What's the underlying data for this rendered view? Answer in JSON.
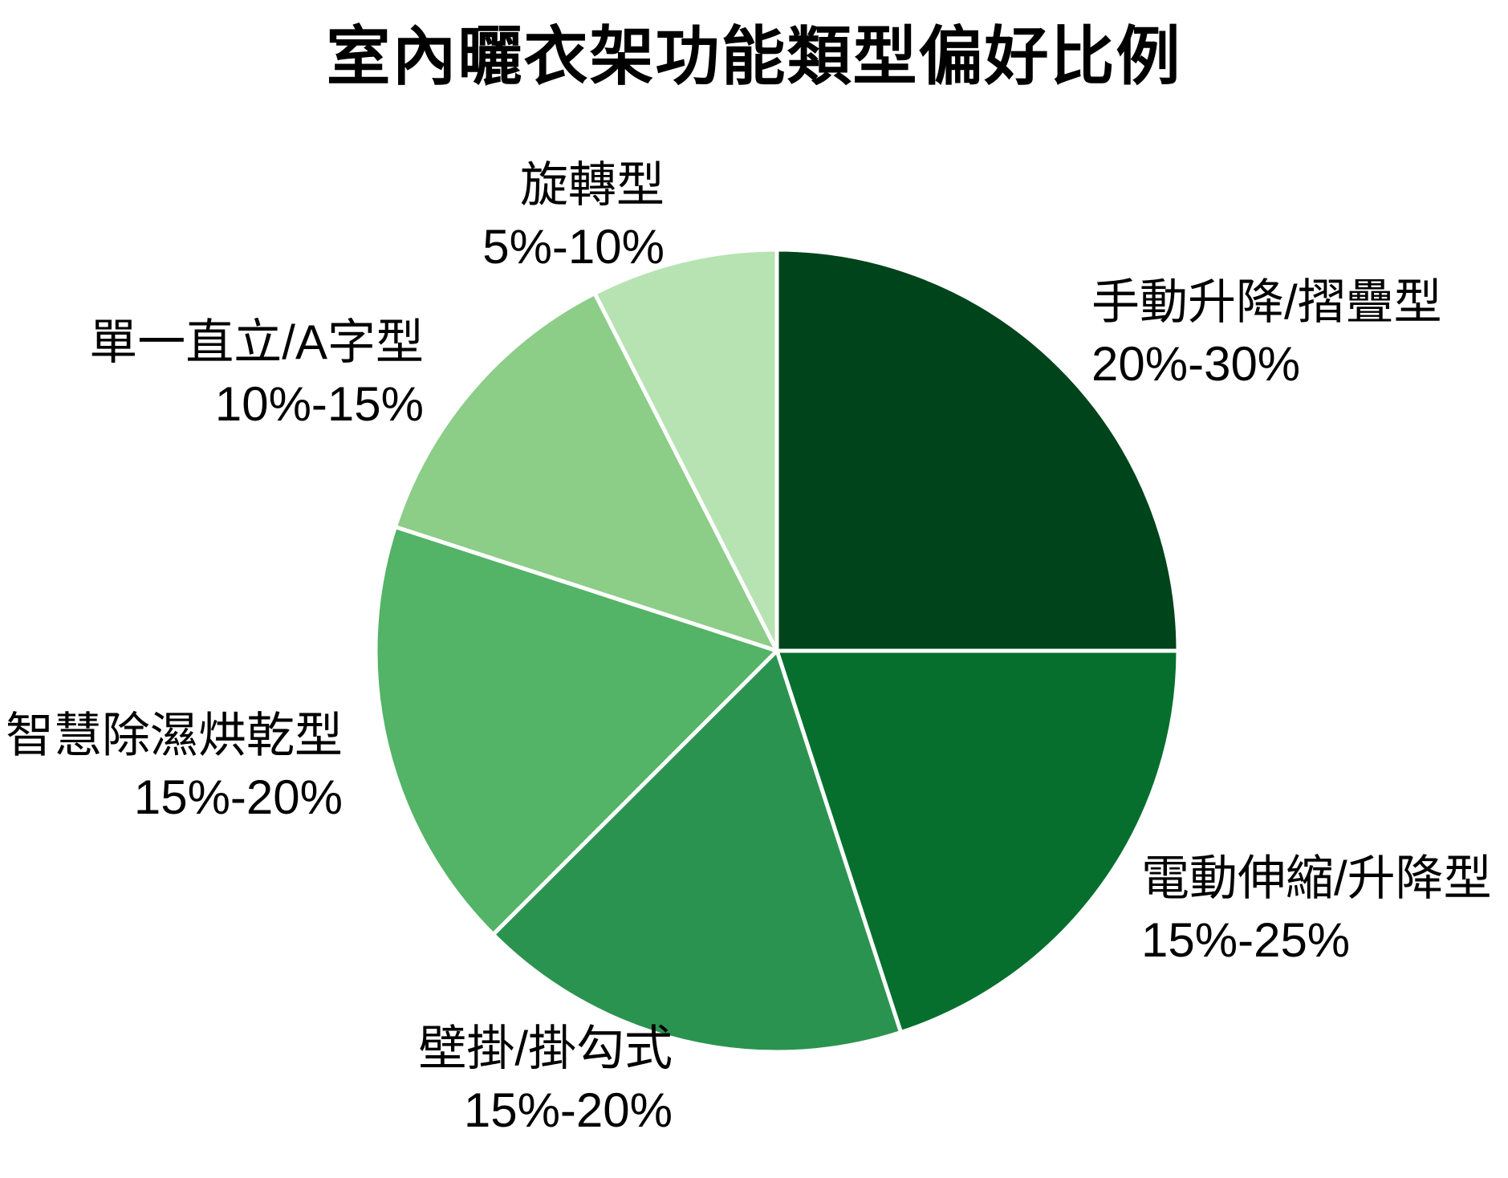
{
  "title": "室內曬衣架功能類型偏好比例",
  "chart_data": {
    "type": "pie",
    "title": "室內曬衣架功能類型偏好比例",
    "direction": "clockwise",
    "start_angle": "top",
    "legend": "none",
    "background": "#ffffff",
    "slice_border_color": "#ffffff",
    "slices": [
      {
        "label": "手動升降/摺疊型",
        "range": "20%-30%",
        "value_mid": 25,
        "color": "#00441b"
      },
      {
        "label": "電動伸縮/升降型",
        "range": "15%-25%",
        "value_mid": 20,
        "color": "#066f2e"
      },
      {
        "label": "壁掛/掛勾式",
        "range": "15%-20%",
        "value_mid": 17.5,
        "color": "#2b9350"
      },
      {
        "label": "智慧除濕烘乾型",
        "range": "15%-20%",
        "value_mid": 17.5,
        "color": "#53b366"
      },
      {
        "label": "單一直立/A字型",
        "range": "10%-15%",
        "value_mid": 12.5,
        "color": "#8ccd88"
      },
      {
        "label": "旋轉型",
        "range": "5%-10%",
        "value_mid": 7.5,
        "color": "#b7e3b2"
      }
    ]
  }
}
